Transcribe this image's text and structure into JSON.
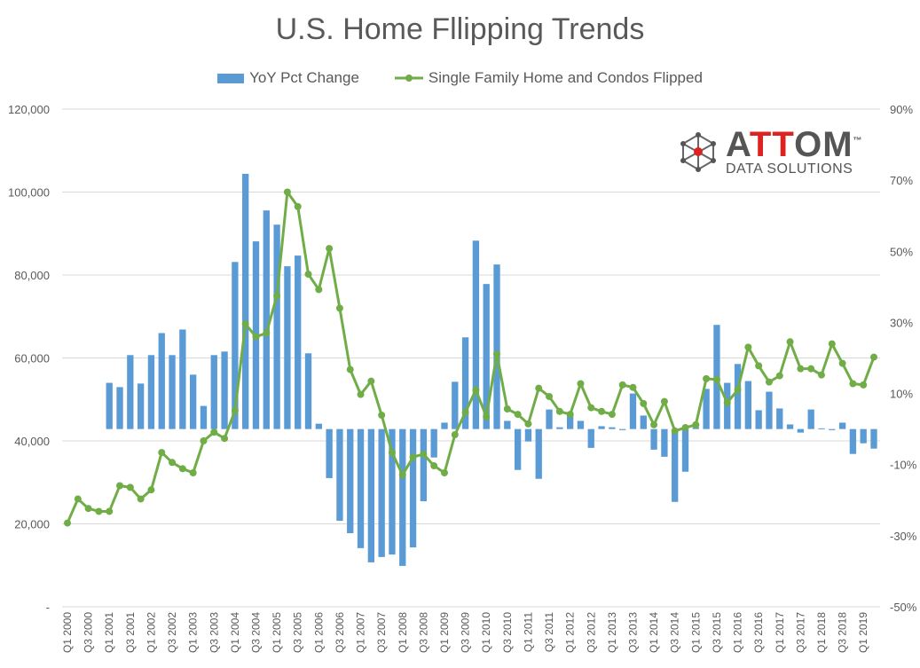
{
  "chart_data": {
    "type": "bar+line",
    "title": "U.S. Home Fllipping Trends",
    "legend_position": "top",
    "grid": true,
    "colors": {
      "bars": "#5b9bd5",
      "line": "#70ad47"
    },
    "x_tick_labels": [
      "Q1 2000",
      "Q3 2000",
      "Q1 2001",
      "Q3 2001",
      "Q1 2002",
      "Q3 2002",
      "Q1 2003",
      "Q3 2003",
      "Q1 2004",
      "Q3 2004",
      "Q1 2005",
      "Q3 2005",
      "Q1 2006",
      "Q3 2006",
      "Q1 2007",
      "Q3 2007",
      "Q1 2008",
      "Q3 2008",
      "Q1 2009",
      "Q3 2009",
      "Q1 2010",
      "Q3 2010",
      "Q1 2011",
      "Q3 2011",
      "Q1 2012",
      "Q3 2012",
      "Q1 2013",
      "Q3 2013",
      "Q1 2014",
      "Q3 2014",
      "Q1 2015",
      "Q3 2015",
      "Q1 2016",
      "Q3 2016",
      "Q1 2017",
      "Q3 2017",
      "Q1 2018",
      "Q3 2018",
      "Q1 2019"
    ],
    "left_axis": {
      "ticks": [
        "-",
        "20,000",
        "40,000",
        "60,000",
        "80,000",
        "100,000",
        "120,000"
      ],
      "range": [
        0,
        120000
      ]
    },
    "right_axis": {
      "ticks": [
        "-50%",
        "-30%",
        "-10%",
        "10%",
        "30%",
        "50%",
        "70%",
        "90%"
      ],
      "range": [
        -50,
        90
      ]
    },
    "series": [
      {
        "name": "YoY Pct Change",
        "type": "bar",
        "axis": "right",
        "start": "Q1 2001",
        "values": [
          13,
          11.8,
          20.8,
          12.8,
          20.8,
          27,
          20.8,
          28,
          15.3,
          6.5,
          20.8,
          21.8,
          47,
          71.8,
          52.8,
          61.5,
          57.5,
          45.8,
          48.8,
          21.3,
          1.5,
          -13.8,
          -25.8,
          -29.3,
          -33.5,
          -37.5,
          -36,
          -35.3,
          -38.5,
          -33.3,
          -20.3,
          -8,
          1.8,
          13.3,
          25.8,
          53,
          40.8,
          46.3,
          2.3,
          -11.5,
          -3.5,
          -14,
          5.5,
          0.5,
          4.8,
          2.3,
          -5.3,
          0.8,
          0.5,
          -0.3,
          10,
          3.8,
          -5.8,
          -7.8,
          -20.5,
          -12,
          0.5,
          11.3,
          29.3,
          13,
          18.3,
          13.5,
          5.3,
          10.5,
          5.8,
          1.3,
          -1,
          5.5,
          0.2,
          -0.3,
          1.8,
          -7,
          -4,
          -5.5
        ]
      },
      {
        "name": "Single Family Home and Condos Flipped",
        "type": "line",
        "axis": "left",
        "start": "Q1 2000",
        "values": [
          20200,
          26000,
          23700,
          23000,
          23000,
          29200,
          28800,
          26000,
          28200,
          37200,
          34800,
          33300,
          32300,
          40000,
          42100,
          40600,
          47300,
          68200,
          65100,
          66000,
          75000,
          100000,
          96500,
          80200,
          76500,
          86400,
          72000,
          57200,
          51200,
          54400,
          46200,
          37200,
          31800,
          36100,
          36800,
          34000,
          32300,
          41500,
          46900,
          52300,
          45800,
          60900,
          47700,
          46400,
          44100,
          52700,
          50700,
          47100,
          46400,
          53800,
          48000,
          47100,
          46400,
          53500,
          52900,
          49000,
          43900,
          49500,
          42400,
          43200,
          43900,
          55000,
          54800,
          49200,
          52300,
          62600,
          58100,
          54200,
          55700,
          63900,
          57400,
          57400,
          55900,
          63400,
          58700,
          53800,
          53500,
          60200
        ]
      }
    ]
  },
  "logo": {
    "text": "ATTOM",
    "subtitle": "DATA SOLUTIONS",
    "tm": "™"
  }
}
